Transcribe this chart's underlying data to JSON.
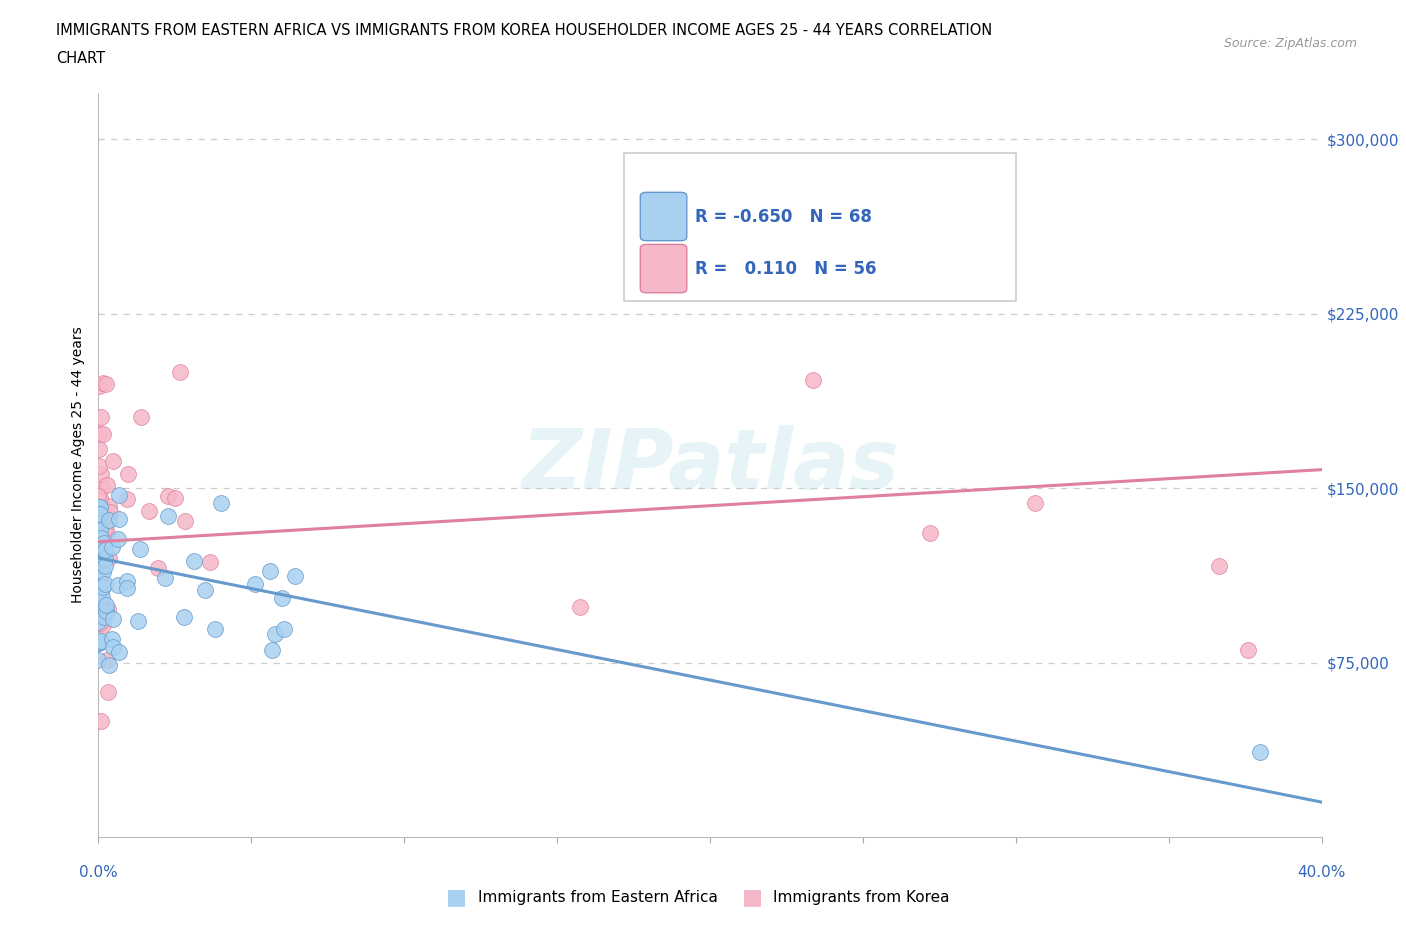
{
  "title_line1": "IMMIGRANTS FROM EASTERN AFRICA VS IMMIGRANTS FROM KOREA HOUSEHOLDER INCOME AGES 25 - 44 YEARS CORRELATION",
  "title_line2": "CHART",
  "source": "Source: ZipAtlas.com",
  "ylabel": "Householder Income Ages 25 - 44 years",
  "xlim": [
    0.0,
    0.4
  ],
  "ylim": [
    0,
    320000
  ],
  "yticks": [
    0,
    75000,
    150000,
    225000,
    300000
  ],
  "ytick_right_labels": [
    "",
    "$75,000",
    "$150,000",
    "$225,000",
    "$300,000"
  ],
  "color_blue": "#a8d0f0",
  "color_pink": "#f5b8c8",
  "color_blue_dark": "#6699cc",
  "color_pink_dark": "#e080a0",
  "color_blue_text": "#3366bb",
  "color_trend_blue": "#6699cc",
  "color_trend_pink": "#e080a0",
  "legend_R1": "-0.650",
  "legend_N1": "68",
  "legend_R2": "0.110",
  "legend_N2": "56",
  "watermark": "ZIPatlas",
  "label1": "Immigrants from Eastern Africa",
  "label2": "Immigrants from Korea",
  "ea_trend_y0": 120000,
  "ea_trend_y1": 15000,
  "kor_trend_y0": 127000,
  "kor_trend_y1": 158000,
  "background": "#ffffff",
  "grid_color": "#cccccc",
  "xtick_label_left": "0.0%",
  "xtick_label_right": "40.0%"
}
